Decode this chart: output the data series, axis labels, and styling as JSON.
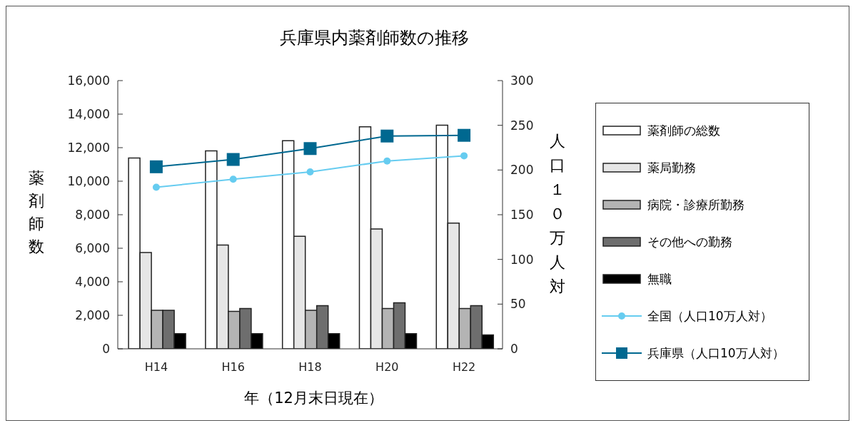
{
  "chart_data": {
    "type": "bar",
    "title": "兵庫県内薬剤師数の推移",
    "xlabel": "年（12月末日現在）",
    "ylabel": "薬剤師数",
    "y2label": "人口１０万人対",
    "categories": [
      "H14",
      "H16",
      "H18",
      "H20",
      "H22"
    ],
    "series": [
      {
        "name": "薬剤師の総数",
        "color": "#ffffff",
        "values": [
          11380,
          11810,
          12420,
          13250,
          13340
        ]
      },
      {
        "name": "薬局勤務",
        "color": "#e6e6e6",
        "values": [
          5750,
          6190,
          6710,
          7150,
          7500
        ]
      },
      {
        "name": "病院・診療所勤務",
        "color": "#b4b4b4",
        "values": [
          2300,
          2230,
          2300,
          2400,
          2400
        ]
      },
      {
        "name": "その他への勤務",
        "color": "#6e6e6e",
        "values": [
          2300,
          2400,
          2570,
          2750,
          2570
        ]
      },
      {
        "name": "無職",
        "color": "#000000",
        "values": [
          900,
          900,
          900,
          900,
          830
        ]
      },
      {
        "name": "全国（人口10万人対）",
        "type": "line",
        "axis": "y2",
        "marker": "circle",
        "color": "#66ccf0",
        "values": [
          180.7,
          189.7,
          197.9,
          210,
          215.9
        ]
      },
      {
        "name": "兵庫県（人口10万人対）",
        "type": "line",
        "axis": "y2",
        "marker": "square",
        "color": "#006890",
        "values": [
          203.6,
          211.8,
          224,
          238,
          238.8
        ]
      }
    ],
    "ylim": [
      0,
      16000
    ],
    "yticks": [
      0,
      {
        "value": 2000,
        "label": "2,000"
      },
      {
        "value": 4000,
        "label": "4,000"
      },
      {
        "value": 6000,
        "label": "6,000"
      },
      {
        "value": 8000,
        "label": "8,000"
      },
      {
        "value": 10000,
        "label": "10,000"
      },
      {
        "value": 12000,
        "label": "12,000"
      },
      {
        "value": 14000,
        "label": "14,000"
      },
      {
        "value": 16000,
        "label": "16,000"
      }
    ],
    "y2lim": [
      0,
      300
    ],
    "y2ticks": [
      0,
      50,
      100,
      150,
      200,
      250,
      300
    ],
    "line_style": "solid",
    "legend": "right"
  }
}
